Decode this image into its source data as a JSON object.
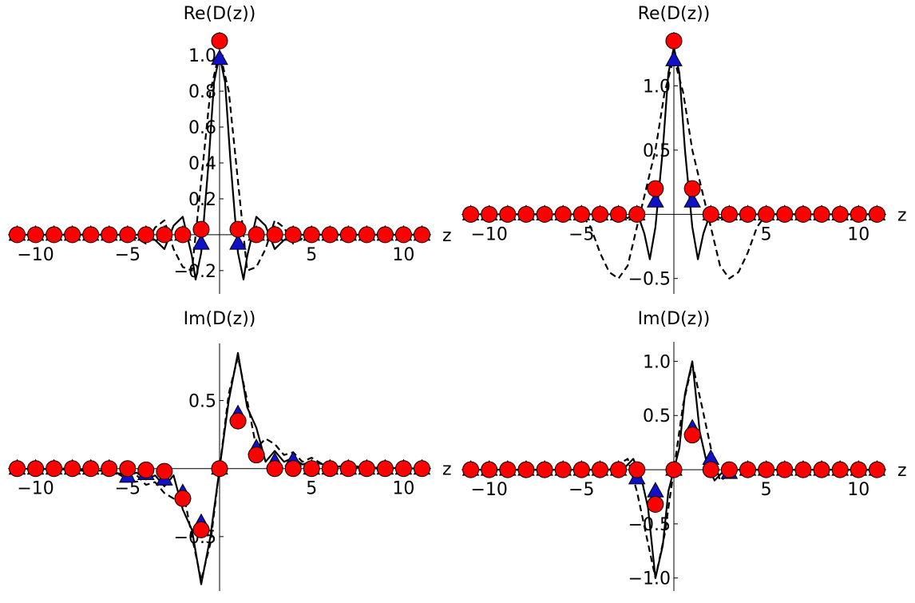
{
  "chart_data": [
    {
      "type": "line",
      "title": "Re(D(z))",
      "xlabel": "z",
      "ylabel": "",
      "xlim": [
        -11.5,
        11.5
      ],
      "ylim": [
        -0.33,
        1.13
      ],
      "xticks": [
        -10,
        -5,
        5,
        10
      ],
      "xtick_labels": [
        "−10",
        "−5",
        "5",
        "10"
      ],
      "yticks": [
        -0.2,
        0.2,
        0.4,
        0.6,
        0.8,
        1.0
      ],
      "ytick_labels": [
        "−0.2",
        "0.2",
        "0.4",
        "0.6",
        "0.8",
        "1.0"
      ],
      "grid": false,
      "curves": [
        {
          "style": "solid",
          "x": [
            -11,
            -4,
            -3.5,
            -3,
            -2.5,
            -2,
            -1.5,
            -1.3,
            -1,
            -0.6,
            -0.3,
            0,
            0.3,
            0.6,
            1,
            1.3,
            1.5,
            2,
            2.5,
            3,
            3.5,
            4,
            11
          ],
          "y": [
            0,
            0,
            -0.03,
            -0.08,
            0.05,
            0.1,
            -0.12,
            -0.25,
            -0.1,
            0.4,
            0.85,
            1.0,
            0.85,
            0.4,
            -0.1,
            -0.25,
            -0.12,
            0.1,
            0.05,
            -0.08,
            -0.03,
            0,
            0
          ]
        },
        {
          "style": "dashed",
          "x": [
            -11,
            -5,
            -4.5,
            -4,
            -3.5,
            -3,
            -2.5,
            -2,
            -1.5,
            -1,
            -0.5,
            0,
            0.5,
            1,
            1.5,
            2,
            2.5,
            3,
            3.5,
            4,
            4.5,
            5,
            11
          ],
          "y": [
            0,
            0,
            -0.02,
            -0.05,
            0.04,
            0.08,
            -0.08,
            -0.18,
            -0.2,
            0.3,
            0.8,
            1.02,
            0.8,
            0.3,
            -0.2,
            -0.18,
            -0.08,
            0.08,
            0.04,
            -0.05,
            -0.02,
            0,
            0
          ]
        }
      ],
      "circles": {
        "x": [
          -11,
          -10,
          -9,
          -8,
          -7,
          -6,
          -5,
          -4,
          -3,
          -2,
          -1,
          0,
          1,
          2,
          3,
          4,
          5,
          6,
          7,
          8,
          9,
          10,
          11
        ],
        "y": [
          0,
          0,
          0,
          0,
          0,
          0,
          0,
          0,
          0,
          0,
          0.03,
          1.08,
          0.03,
          0,
          0,
          0,
          0,
          0,
          0,
          0,
          0,
          0,
          0
        ]
      },
      "triangles": {
        "x": [
          -11,
          -10,
          -9,
          -8,
          -7,
          -6,
          -5,
          -4,
          -3,
          -2,
          -1,
          0,
          1,
          2,
          3,
          4,
          5,
          6,
          7,
          8,
          9,
          10,
          11
        ],
        "y": [
          0,
          0,
          0,
          0,
          0,
          0,
          0,
          0,
          0,
          0,
          -0.05,
          0.98,
          -0.05,
          0,
          0,
          0,
          0,
          0,
          0,
          0,
          0,
          0,
          0
        ]
      }
    },
    {
      "type": "line",
      "title": "Re(D(z))",
      "xlabel": "z",
      "ylabel": "",
      "xlim": [
        -11.5,
        11.5
      ],
      "ylim": [
        -0.62,
        1.42
      ],
      "xticks": [
        -10,
        -5,
        5,
        10
      ],
      "xtick_labels": [
        "−10",
        "−5",
        "5",
        "10"
      ],
      "yticks": [
        -0.5,
        0.5,
        1.0
      ],
      "ytick_labels": [
        "−0.5",
        "0.5",
        "1.0"
      ],
      "grid": false,
      "curves": [
        {
          "style": "solid",
          "x": [
            -11,
            -3,
            -2.5,
            -2,
            -1.6,
            -1.3,
            -1,
            -0.6,
            -0.3,
            0,
            0.3,
            0.6,
            1,
            1.3,
            1.6,
            2,
            2.5,
            3,
            11
          ],
          "y": [
            0,
            0,
            -0.03,
            0.02,
            -0.15,
            -0.35,
            -0.1,
            0.5,
            1.1,
            1.3,
            1.1,
            0.5,
            -0.1,
            -0.35,
            -0.15,
            0.02,
            -0.03,
            0,
            0
          ]
        },
        {
          "style": "dashed",
          "x": [
            -11,
            -5,
            -4.5,
            -4,
            -3.5,
            -3,
            -2.5,
            -2,
            -1.5,
            -1,
            -0.5,
            0,
            0.5,
            1,
            1.5,
            2,
            2.5,
            3,
            3.5,
            4,
            4.5,
            5,
            11
          ],
          "y": [
            0,
            0,
            -0.1,
            -0.3,
            -0.45,
            -0.5,
            -0.4,
            -0.1,
            0.2,
            0.5,
            0.95,
            1.22,
            0.95,
            0.5,
            0.2,
            -0.1,
            -0.4,
            -0.5,
            -0.45,
            -0.3,
            -0.1,
            0,
            0
          ]
        }
      ],
      "circles": {
        "x": [
          -11,
          -10,
          -9,
          -8,
          -7,
          -6,
          -5,
          -4,
          -3,
          -2,
          -1,
          0,
          1,
          2,
          3,
          4,
          5,
          6,
          7,
          8,
          9,
          10,
          11
        ],
        "y": [
          0,
          0,
          0,
          0,
          0,
          0,
          0,
          0,
          0,
          0,
          0.2,
          1.35,
          0.2,
          0,
          0,
          0,
          0,
          0,
          0,
          0,
          0,
          0,
          0
        ]
      },
      "triangles": {
        "x": [
          -11,
          -10,
          -9,
          -8,
          -7,
          -6,
          -5,
          -4,
          -3,
          -2,
          -1,
          0,
          1,
          2,
          3,
          4,
          5,
          6,
          7,
          8,
          9,
          10,
          11
        ],
        "y": [
          0,
          0,
          0,
          0,
          0,
          0,
          0,
          0,
          0,
          0,
          0.1,
          1.2,
          0.1,
          0,
          0,
          0,
          0,
          0,
          0,
          0,
          0,
          0,
          0
        ]
      }
    },
    {
      "type": "line",
      "title": "Im(D(z))",
      "xlabel": "z",
      "ylabel": "",
      "xlim": [
        -11.5,
        11.5
      ],
      "ylim": [
        -0.9,
        0.92
      ],
      "xticks": [
        -10,
        -5,
        5,
        10
      ],
      "xtick_labels": [
        "−10",
        "−5",
        "5",
        "10"
      ],
      "yticks": [
        -0.5,
        0.5
      ],
      "ytick_labels": [
        "−0.5",
        "0.5"
      ],
      "grid": false,
      "curves": [
        {
          "style": "solid",
          "x": [
            -11,
            -7,
            -6,
            -5,
            -4.5,
            -4,
            -3.5,
            -3,
            -2.5,
            -2,
            -1.5,
            -1,
            -0.5,
            0,
            0.5,
            1,
            1.5,
            2,
            2.5,
            3,
            3.5,
            4,
            4.5,
            5,
            6,
            7,
            11
          ],
          "y": [
            0,
            -0.01,
            -0.02,
            -0.05,
            -0.03,
            -0.08,
            -0.05,
            -0.13,
            -0.05,
            -0.3,
            -0.45,
            -0.85,
            -0.5,
            0,
            0.5,
            0.85,
            0.45,
            0.3,
            0.05,
            0.13,
            0.05,
            0.08,
            0.03,
            0.05,
            0.02,
            0.01,
            0
          ]
        },
        {
          "style": "dashed",
          "x": [
            -11,
            -8,
            -7,
            -6,
            -5,
            -4.5,
            -4,
            -3.5,
            -3,
            -2.5,
            -2,
            -1.5,
            -1,
            -0.5,
            0,
            0.5,
            1,
            1.5,
            2,
            2.5,
            3,
            3.5,
            4,
            4.5,
            5,
            6,
            7,
            8,
            11
          ],
          "y": [
            0,
            0,
            -0.03,
            0,
            -0.08,
            -0.05,
            -0.12,
            -0.1,
            -0.18,
            -0.22,
            -0.15,
            -0.5,
            -0.82,
            -0.55,
            0,
            0.55,
            0.82,
            0.5,
            0.15,
            0.22,
            0.18,
            0.1,
            0.12,
            0.05,
            0.08,
            0,
            0.03,
            0,
            0
          ]
        }
      ],
      "circles": {
        "x": [
          -11,
          -10,
          -9,
          -8,
          -7,
          -6,
          -5,
          -4,
          -3,
          -2,
          -1,
          0,
          1,
          2,
          3,
          4,
          5,
          6,
          7,
          8,
          9,
          10,
          11
        ],
        "y": [
          0,
          0,
          0,
          0,
          0,
          0,
          0,
          -0.01,
          -0.02,
          -0.22,
          -0.45,
          0,
          0.35,
          0.1,
          0,
          0,
          0,
          0,
          0,
          0,
          0,
          0,
          0
        ]
      },
      "triangles": {
        "x": [
          -11,
          -10,
          -9,
          -8,
          -7,
          -6,
          -5,
          -4,
          -3,
          -2,
          -1,
          0,
          1,
          2,
          3,
          4,
          5,
          6,
          7,
          8,
          9,
          10,
          11
        ],
        "y": [
          0,
          0,
          0,
          0,
          0,
          0,
          -0.06,
          -0.04,
          -0.08,
          -0.18,
          -0.4,
          0,
          0.4,
          0.15,
          0.05,
          0.06,
          0,
          0,
          0,
          0,
          0,
          0,
          0
        ]
      }
    },
    {
      "type": "line",
      "title": "Im(D(z))",
      "xlabel": "z",
      "ylabel": "",
      "xlim": [
        -11.5,
        11.5
      ],
      "ylim": [
        -1.12,
        1.18
      ],
      "xticks": [
        -10,
        -5,
        5,
        10
      ],
      "xtick_labels": [
        "−10",
        "−5",
        "5",
        "10"
      ],
      "yticks": [
        -1.0,
        -0.5,
        0.5,
        1.0
      ],
      "ytick_labels": [
        "−1.0",
        "−0.5",
        "0.5",
        "1.0"
      ],
      "grid": false,
      "curves": [
        {
          "style": "solid",
          "x": [
            -11,
            -3,
            -2.6,
            -2.2,
            -1.8,
            -1.4,
            -1,
            -0.6,
            -0.3,
            0,
            0.3,
            0.6,
            1,
            1.4,
            1.8,
            2.2,
            2.6,
            3,
            11
          ],
          "y": [
            0,
            0,
            0.03,
            0.1,
            -0.05,
            -0.35,
            -1.0,
            -0.7,
            -0.2,
            0,
            0.2,
            0.7,
            1.0,
            0.35,
            0.05,
            -0.1,
            -0.03,
            0,
            0
          ]
        },
        {
          "style": "dashed",
          "x": [
            -11,
            -3.5,
            -3,
            -2.5,
            -2,
            -1.5,
            -1,
            -0.5,
            0,
            0.5,
            1,
            1.5,
            2,
            2.5,
            3,
            3.5,
            11
          ],
          "y": [
            0,
            0,
            0.05,
            0.1,
            -0.2,
            -0.6,
            -1.0,
            -0.6,
            0,
            0.6,
            0.98,
            0.6,
            0.2,
            -0.1,
            -0.05,
            0,
            0
          ]
        }
      ],
      "circles": {
        "x": [
          -11,
          -10,
          -9,
          -8,
          -7,
          -6,
          -5,
          -4,
          -3,
          -2,
          -1,
          0,
          1,
          2,
          3,
          4,
          5,
          6,
          7,
          8,
          9,
          10,
          11
        ],
        "y": [
          0,
          0,
          0,
          0,
          0,
          0,
          0,
          0,
          0,
          0,
          -0.32,
          0,
          0.32,
          0,
          0,
          0,
          0,
          0,
          0,
          0,
          0,
          0,
          0
        ]
      },
      "triangles": {
        "x": [
          -11,
          -10,
          -9,
          -8,
          -7,
          -6,
          -5,
          -4,
          -3,
          -2,
          -1,
          0,
          1,
          2,
          3,
          4,
          5,
          6,
          7,
          8,
          9,
          10,
          11
        ],
        "y": [
          0,
          0,
          0,
          0,
          0,
          0,
          0,
          0,
          0,
          -0.08,
          -0.2,
          0,
          0.38,
          0.1,
          -0.03,
          0,
          0,
          0,
          0,
          0,
          0,
          0,
          0
        ]
      }
    }
  ],
  "colors": {
    "circle_fill": "#ff0000",
    "triangle_fill": "#1010c8",
    "marker_stroke": "#000000",
    "curve": "#000000",
    "axis": "#000000"
  }
}
